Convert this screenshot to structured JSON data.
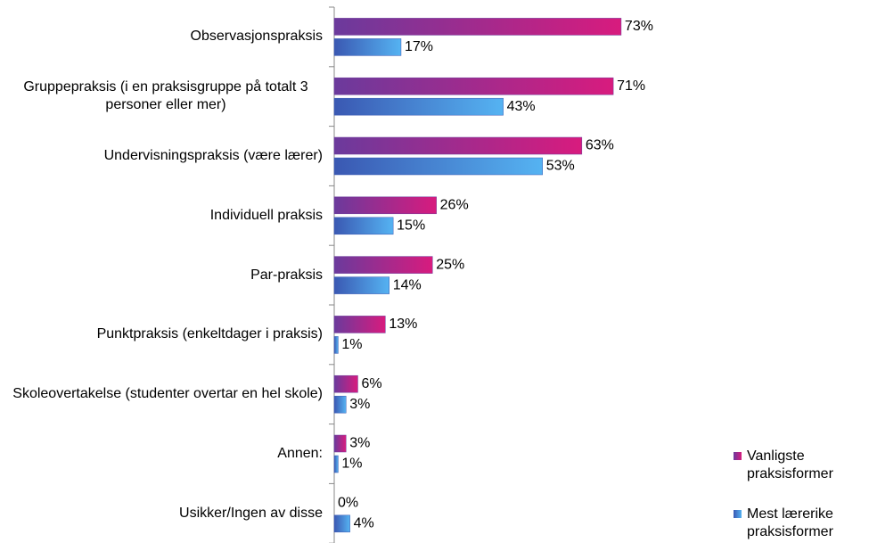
{
  "chart_data": {
    "type": "bar",
    "orientation": "horizontal",
    "categories": [
      "Observasjonspraksis",
      "Gruppepraksis (i en praksisgruppe på totalt 3 personer eller mer)",
      "Undervisningspraksis (være lærer)",
      "Individuell praksis",
      "Par-praksis",
      "Punktpraksis (enkeltdager i praksis)",
      "Skoleovertakelse (studenter overtar en hel skole)",
      "Annen:",
      "Usikker/Ingen av disse"
    ],
    "series": [
      {
        "name": "Vanligste praksisformer",
        "color": "#d81b7e",
        "values": [
          73,
          71,
          63,
          26,
          25,
          13,
          6,
          3,
          0
        ],
        "value_labels": [
          "73%",
          "71%",
          "63%",
          "26%",
          "25%",
          "13%",
          "6%",
          "3%",
          "0%"
        ]
      },
      {
        "name": "Mest lærerike praksisformer",
        "color": "#55b3f2",
        "values": [
          17,
          43,
          53,
          15,
          14,
          1,
          3,
          1,
          4
        ],
        "value_labels": [
          "17%",
          "43%",
          "53%",
          "15%",
          "14%",
          "1%",
          "3%",
          "1%",
          "4%"
        ]
      }
    ],
    "xlim": [
      0,
      100
    ],
    "legend": "bottom-right"
  }
}
